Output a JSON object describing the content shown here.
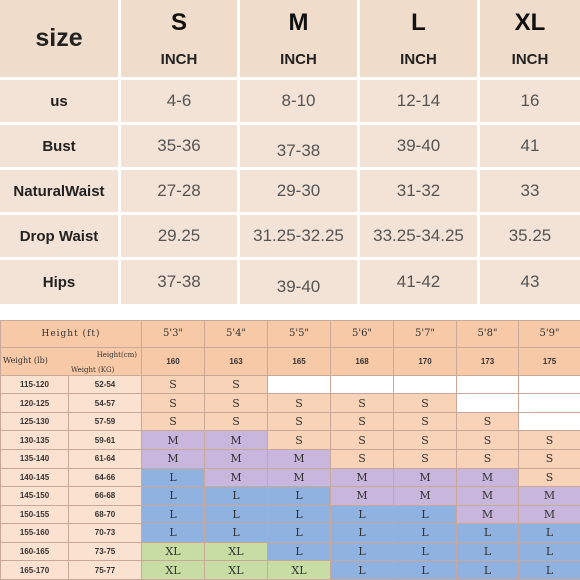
{
  "size_table": {
    "title": "size",
    "sizes": [
      "S",
      "M",
      "L",
      "XL"
    ],
    "units": [
      "INCH",
      "INCH",
      "INCH",
      "INCH"
    ],
    "rows": [
      {
        "label": "us",
        "values": [
          "4-6",
          "8-10",
          "12-14",
          "16"
        ]
      },
      {
        "label": "Bust",
        "values": [
          "35-36",
          "37-38",
          "39-40",
          "41"
        ]
      },
      {
        "label": "NaturalWaist",
        "values": [
          "27-28",
          "29-30",
          "31-32",
          "33"
        ]
      },
      {
        "label": "Drop Waist",
        "values": [
          "29.25",
          "31.25-32.25",
          "33.25-34.25",
          "35.25"
        ]
      },
      {
        "label": "Hips",
        "values": [
          "37-38",
          "39-40",
          "41-42",
          "43"
        ]
      }
    ]
  },
  "fit_chart": {
    "height_ft_label": "Height (ft)",
    "height_cm_label": "Height(cm)",
    "weight_lb_label": "Weight (lb)",
    "weight_kg_label": "Weight (KG)",
    "heights_ft": [
      "5'3\"",
      "5'4\"",
      "5'5\"",
      "5'6\"",
      "5'7\"",
      "5'8\"",
      "5'9\""
    ],
    "heights_cm": [
      "160",
      "163",
      "165",
      "168",
      "170",
      "173",
      "175"
    ],
    "rows": [
      {
        "lb": "115-120",
        "kg": "52-54",
        "sizes": [
          "S",
          "S",
          "",
          "",
          "",
          "",
          ""
        ]
      },
      {
        "lb": "120-125",
        "kg": "54-57",
        "sizes": [
          "S",
          "S",
          "S",
          "S",
          "S",
          "",
          ""
        ]
      },
      {
        "lb": "125-130",
        "kg": "57-59",
        "sizes": [
          "S",
          "S",
          "S",
          "S",
          "S",
          "S",
          ""
        ]
      },
      {
        "lb": "130-135",
        "kg": "59-61",
        "sizes": [
          "M",
          "M",
          "S",
          "S",
          "S",
          "S",
          "S"
        ]
      },
      {
        "lb": "135-140",
        "kg": "61-64",
        "sizes": [
          "M",
          "M",
          "M",
          "S",
          "S",
          "S",
          "S"
        ]
      },
      {
        "lb": "140-145",
        "kg": "64-66",
        "sizes": [
          "L",
          "M",
          "M",
          "M",
          "M",
          "M",
          "S"
        ]
      },
      {
        "lb": "145-150",
        "kg": "66-68",
        "sizes": [
          "L",
          "L",
          "L",
          "M",
          "M",
          "M",
          "M"
        ]
      },
      {
        "lb": "150-155",
        "kg": "68-70",
        "sizes": [
          "L",
          "L",
          "L",
          "L",
          "L",
          "M",
          "M"
        ]
      },
      {
        "lb": "155-160",
        "kg": "70-73",
        "sizes": [
          "L",
          "L",
          "L",
          "L",
          "L",
          "L",
          "L"
        ]
      },
      {
        "lb": "160-165",
        "kg": "73-75",
        "sizes": [
          "XL",
          "XL",
          "L",
          "L",
          "L",
          "L",
          "L"
        ]
      },
      {
        "lb": "165-170",
        "kg": "75-77",
        "sizes": [
          "XL",
          "XL",
          "XL",
          "L",
          "L",
          "L",
          "L"
        ]
      }
    ]
  },
  "colors": {
    "S": "#f9d3b8",
    "M": "#c8b6dc",
    "L": "#8fb2e0",
    "XL": "#c7dda4",
    "top_cell": "#f3e3d6"
  }
}
